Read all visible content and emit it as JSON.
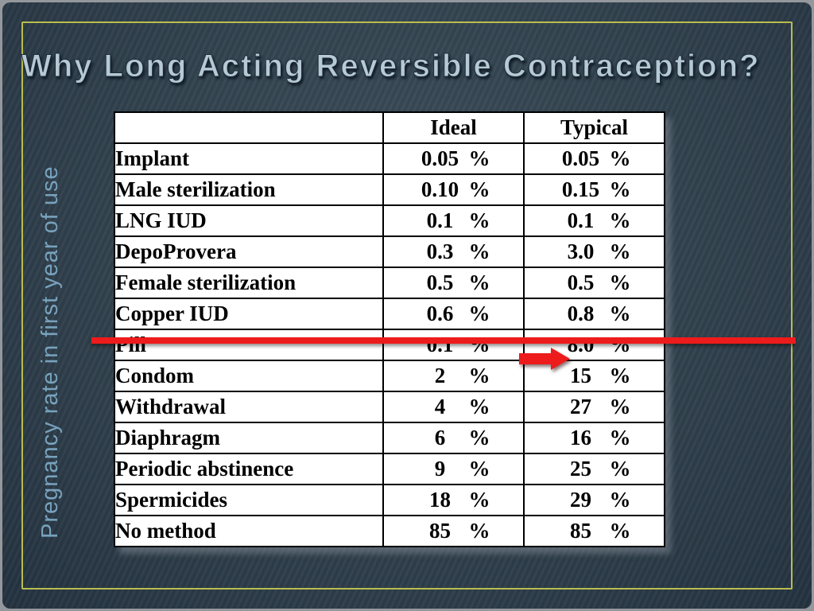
{
  "slide": {
    "title": "Why Long Acting Reversible Contraception?",
    "side_label": "Pregnancy rate in first year of use"
  },
  "table": {
    "headers": [
      "",
      "Ideal",
      "Typical"
    ],
    "percent_sign": "%",
    "rows": [
      {
        "method": "Implant",
        "ideal": "0.05",
        "typical": "0.05"
      },
      {
        "method": "Male sterilization",
        "ideal": "0.10",
        "typical": "0.15"
      },
      {
        "method": "LNG IUD",
        "ideal": "0.1",
        "typical": "0.1"
      },
      {
        "method": "DepoProvera",
        "ideal": "0.3",
        "typical": "3.0"
      },
      {
        "method": "Female sterilization",
        "ideal": "0.5",
        "typical": "0.5"
      },
      {
        "method": "Copper IUD",
        "ideal": "0.6",
        "typical": "0.8"
      },
      {
        "method": "Pill",
        "ideal": "0.1",
        "typical": "8.0"
      },
      {
        "method": "Condom",
        "ideal": "2",
        "typical": "15"
      },
      {
        "method": "Withdrawal",
        "ideal": "4",
        "typical": "27"
      },
      {
        "method": "Diaphragm",
        "ideal": "6",
        "typical": "16"
      },
      {
        "method": "Periodic abstinence",
        "ideal": "9",
        "typical": "25"
      },
      {
        "method": "Spermicides",
        "ideal": "18",
        "typical": "29"
      },
      {
        "method": "No method",
        "ideal": "85",
        "typical": "85"
      }
    ]
  },
  "annotations": {
    "divider_line": {
      "color": "#ed1b1b",
      "after_method": "Copper IUD"
    },
    "arrow": {
      "color": "#ed1b1b",
      "points_to": "Pill typical value"
    }
  },
  "colors": {
    "background": "#31414d",
    "frame": "#b9bd4e",
    "title": "#b6c9d4",
    "side_label": "#78a2bd",
    "table_background": "#ffffff",
    "table_text": "#000000"
  }
}
